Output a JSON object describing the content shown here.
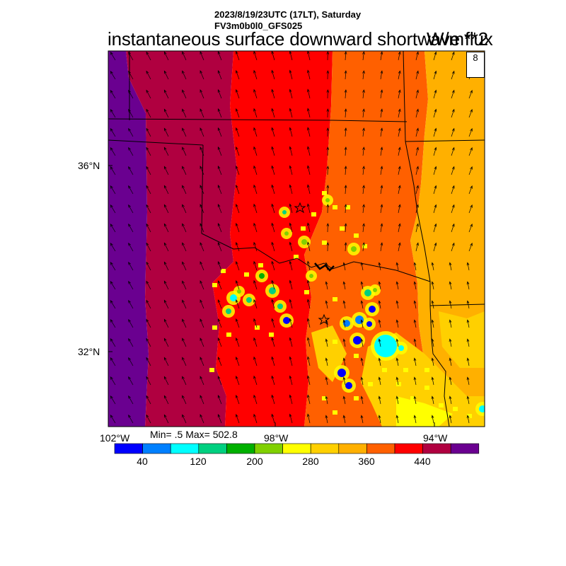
{
  "header": {
    "line1": "2023/8/19/23UTC (17LT), Saturday",
    "line2": "FV3m0b0l0_GFS025",
    "main_title": "instantaneous surface downward shortwave flux",
    "units": "W/m**2"
  },
  "map": {
    "lat_labels": [
      "36°N",
      "32°N"
    ],
    "lon_labels": [
      "102°W",
      "98°W",
      "94°W"
    ],
    "region": "Texas-Oklahoma",
    "overlay": "wind-vector-field",
    "markers": [
      "star-marker",
      "star-marker"
    ]
  },
  "reference_vector": {
    "value": "8"
  },
  "stats": {
    "text": "Min= .5 Max= 502.8"
  },
  "colorbar": {
    "colors": [
      "#0000ff",
      "#0080ff",
      "#00ffff",
      "#00d080",
      "#00b000",
      "#80d000",
      "#ffff00",
      "#ffd000",
      "#ffb000",
      "#ff6000",
      "#ff0000",
      "#b00040",
      "#6a0090"
    ],
    "tick_labels": [
      "40",
      "120",
      "200",
      "280",
      "360",
      "440"
    ]
  }
}
